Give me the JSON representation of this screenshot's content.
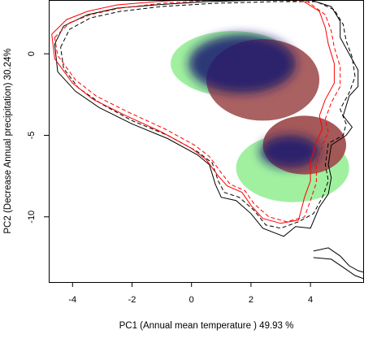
{
  "chart_data": {
    "type": "contour-density",
    "xlabel": "PC1 (Annual mean temperature ) 49.93 %",
    "ylabel": "PC2 (Decrease Annual precipitation) 30.24%",
    "xlim": [
      -4.8,
      5.8
    ],
    "ylim": [
      -14,
      3.3
    ],
    "xticks": [
      -4,
      -2,
      0,
      2,
      4
    ],
    "yticks": [
      0,
      -5,
      -10
    ],
    "grid": false,
    "colors": {
      "overlap": "#0a0a4a",
      "species_1_only": "#a0f0a0",
      "species_2_only": "#a05050",
      "envelope_1": "#000000",
      "envelope_2": "#ff0000"
    },
    "density_blobs": [
      {
        "cx": 1.4,
        "cy": -0.6,
        "rx": 2.1,
        "ry": 2.0,
        "color": "#a0f0a0",
        "opacity": 1.0
      },
      {
        "cx": 3.4,
        "cy": -7.0,
        "rx": 1.9,
        "ry": 2.1,
        "color": "#a0f0a0",
        "opacity": 1.0
      },
      {
        "cx": 2.4,
        "cy": -1.6,
        "rx": 1.9,
        "ry": 2.5,
        "color": "#a05050",
        "opacity": 0.9
      },
      {
        "cx": 3.8,
        "cy": -5.6,
        "rx": 1.4,
        "ry": 1.8,
        "color": "#a05050",
        "opacity": 0.95
      },
      {
        "cx": 1.7,
        "cy": -0.6,
        "rx": 1.8,
        "ry": 1.8,
        "color": "#1a1a70",
        "opacity": 0.85
      },
      {
        "cx": 3.3,
        "cy": -6.0,
        "rx": 1.0,
        "ry": 1.0,
        "color": "#1a1a70",
        "opacity": 0.85
      }
    ],
    "series": [
      {
        "kind": "envelope",
        "color": "#000000",
        "dashed": false,
        "points": [
          [
            -4.6,
            0.6
          ],
          [
            -4.3,
            1.7
          ],
          [
            -3.5,
            2.4
          ],
          [
            -2.5,
            2.8
          ],
          [
            -1.2,
            3.0
          ],
          [
            0.5,
            3.2
          ],
          [
            2.5,
            3.3
          ],
          [
            4.0,
            3.3
          ],
          [
            4.7,
            2.9
          ],
          [
            5.0,
            2.0
          ],
          [
            5.0,
            1.0
          ],
          [
            5.3,
            0.0
          ],
          [
            5.6,
            -1.0
          ],
          [
            5.6,
            -2.0
          ],
          [
            5.3,
            -2.6
          ],
          [
            5.1,
            -3.8
          ],
          [
            5.4,
            -4.5
          ],
          [
            5.2,
            -5.0
          ],
          [
            4.7,
            -5.6
          ],
          [
            4.6,
            -6.8
          ],
          [
            4.7,
            -7.6
          ],
          [
            4.6,
            -8.6
          ],
          [
            4.3,
            -9.4
          ],
          [
            4.0,
            -10.7
          ],
          [
            3.5,
            -10.6
          ],
          [
            3.1,
            -11.2
          ],
          [
            2.4,
            -10.7
          ],
          [
            2.0,
            -9.8
          ],
          [
            1.5,
            -9.0
          ],
          [
            1.0,
            -8.8
          ],
          [
            0.8,
            -8.0
          ],
          [
            0.6,
            -6.8
          ],
          [
            0.2,
            -6.2
          ],
          [
            -0.8,
            -5.2
          ],
          [
            -2.0,
            -4.3
          ],
          [
            -3.1,
            -3.3
          ],
          [
            -3.9,
            -2.3
          ],
          [
            -4.5,
            -1.1
          ],
          [
            -4.6,
            0.6
          ]
        ]
      },
      {
        "kind": "envelope",
        "color": "#000000",
        "dashed": true,
        "points": [
          [
            -4.4,
            0.4
          ],
          [
            -4.1,
            1.5
          ],
          [
            -3.4,
            2.2
          ],
          [
            -2.4,
            2.6
          ],
          [
            -1.0,
            2.9
          ],
          [
            0.8,
            3.1
          ],
          [
            2.8,
            3.2
          ],
          [
            4.2,
            3.2
          ],
          [
            4.8,
            2.7
          ],
          [
            5.1,
            1.8
          ],
          [
            5.2,
            0.8
          ],
          [
            5.4,
            -0.2
          ],
          [
            5.5,
            -1.4
          ],
          [
            5.3,
            -2.4
          ],
          [
            5.0,
            -3.4
          ],
          [
            5.2,
            -4.3
          ],
          [
            5.1,
            -5.0
          ],
          [
            4.6,
            -5.5
          ],
          [
            4.5,
            -6.8
          ],
          [
            4.6,
            -7.8
          ],
          [
            4.4,
            -8.8
          ],
          [
            4.1,
            -9.8
          ],
          [
            3.6,
            -10.3
          ],
          [
            3.0,
            -10.7
          ],
          [
            2.5,
            -10.5
          ],
          [
            2.1,
            -9.6
          ],
          [
            1.6,
            -8.8
          ],
          [
            1.1,
            -8.5
          ],
          [
            0.9,
            -7.8
          ],
          [
            0.7,
            -6.7
          ],
          [
            0.2,
            -6.0
          ],
          [
            -0.8,
            -5.0
          ],
          [
            -2.0,
            -4.1
          ],
          [
            -3.0,
            -3.1
          ],
          [
            -3.8,
            -2.1
          ],
          [
            -4.3,
            -0.9
          ],
          [
            -4.4,
            0.4
          ]
        ]
      },
      {
        "kind": "envelope",
        "color": "#ff0000",
        "dashed": false,
        "points": [
          [
            -4.7,
            1.2
          ],
          [
            -4.2,
            2.1
          ],
          [
            -3.5,
            2.6
          ],
          [
            -2.5,
            3.0
          ],
          [
            -1.2,
            3.2
          ],
          [
            0.6,
            3.4
          ],
          [
            2.6,
            3.4
          ],
          [
            3.7,
            3.3
          ],
          [
            4.3,
            2.6
          ],
          [
            4.5,
            1.6
          ],
          [
            4.6,
            0.6
          ],
          [
            4.8,
            -0.6
          ],
          [
            4.8,
            -1.8
          ],
          [
            4.5,
            -2.8
          ],
          [
            4.3,
            -3.8
          ],
          [
            4.4,
            -4.6
          ],
          [
            4.2,
            -5.4
          ],
          [
            4.0,
            -6.6
          ],
          [
            4.0,
            -7.8
          ],
          [
            3.8,
            -8.8
          ],
          [
            3.6,
            -10.2
          ],
          [
            3.0,
            -10.4
          ],
          [
            2.4,
            -10.1
          ],
          [
            2.0,
            -9.3
          ],
          [
            1.7,
            -8.5
          ],
          [
            1.2,
            -8.1
          ],
          [
            0.9,
            -7.5
          ],
          [
            0.5,
            -6.5
          ],
          [
            0.0,
            -5.8
          ],
          [
            -1.0,
            -4.8
          ],
          [
            -2.2,
            -3.8
          ],
          [
            -3.3,
            -2.8
          ],
          [
            -4.0,
            -1.8
          ],
          [
            -4.6,
            -0.3
          ],
          [
            -4.7,
            1.2
          ]
        ]
      },
      {
        "kind": "envelope",
        "color": "#ff0000",
        "dashed": true,
        "points": [
          [
            -4.6,
            1.0
          ],
          [
            -4.1,
            1.9
          ],
          [
            -3.4,
            2.4
          ],
          [
            -2.4,
            2.8
          ],
          [
            -1.0,
            3.1
          ],
          [
            0.8,
            3.3
          ],
          [
            2.8,
            3.3
          ],
          [
            3.9,
            3.2
          ],
          [
            4.5,
            2.4
          ],
          [
            4.7,
            1.4
          ],
          [
            4.8,
            0.4
          ],
          [
            5.0,
            -0.8
          ],
          [
            5.0,
            -2.0
          ],
          [
            4.7,
            -3.0
          ],
          [
            4.5,
            -4.0
          ],
          [
            4.6,
            -4.8
          ],
          [
            4.4,
            -5.6
          ],
          [
            4.2,
            -6.8
          ],
          [
            4.2,
            -7.9
          ],
          [
            4.0,
            -9.0
          ],
          [
            3.8,
            -10.0
          ],
          [
            3.2,
            -10.3
          ],
          [
            2.6,
            -10.0
          ],
          [
            2.1,
            -9.2
          ],
          [
            1.8,
            -8.4
          ],
          [
            1.3,
            -8.0
          ],
          [
            1.0,
            -7.3
          ],
          [
            0.6,
            -6.3
          ],
          [
            0.1,
            -5.6
          ],
          [
            -0.9,
            -4.6
          ],
          [
            -2.1,
            -3.6
          ],
          [
            -3.2,
            -2.6
          ],
          [
            -3.9,
            -1.6
          ],
          [
            -4.5,
            -0.1
          ],
          [
            -4.6,
            1.0
          ]
        ]
      },
      {
        "kind": "envelope",
        "color": "#000000",
        "dashed": false,
        "points": [
          [
            4.1,
            -12.1
          ],
          [
            4.6,
            -11.9
          ],
          [
            5.0,
            -12.4
          ],
          [
            5.3,
            -13.0
          ],
          [
            5.6,
            -13.3
          ],
          [
            5.8,
            -13.4
          ]
        ]
      },
      {
        "kind": "envelope",
        "color": "#000000",
        "dashed": false,
        "points": [
          [
            4.1,
            -12.5
          ],
          [
            4.7,
            -12.6
          ],
          [
            5.1,
            -13.1
          ],
          [
            5.5,
            -13.6
          ],
          [
            5.8,
            -13.8
          ]
        ]
      }
    ]
  }
}
